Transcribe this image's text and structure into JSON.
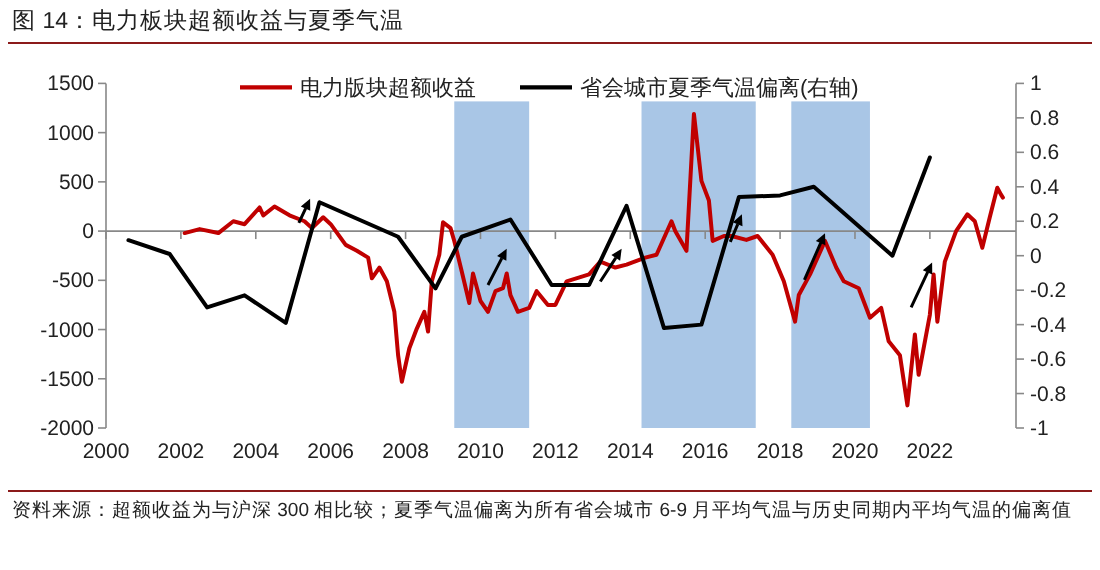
{
  "chart_data": {
    "type": "line",
    "title": "图 14：电力板块超额收益与夏季气温",
    "annotations": [
      "资料来源：超额收益为与沪深 300 相比较；夏季气温偏离为所有省会城市 6-9 月平均气温与历史同期内平均气温的偏离值"
    ],
    "series": [
      {
        "name": "电力版块超额收益",
        "color": "#c00000",
        "x": [
          2002.1,
          2002.5,
          2003.0,
          2003.4,
          2003.7,
          2004.1,
          2004.2,
          2004.5,
          2004.9,
          2005.3,
          2005.5,
          2005.8,
          2006.0,
          2006.4,
          2006.7,
          2007.0,
          2007.1,
          2007.3,
          2007.5,
          2007.7,
          2007.8,
          2007.9,
          2008.1,
          2008.3,
          2008.5,
          2008.6,
          2008.7,
          2008.9,
          2009.0,
          2009.2,
          2009.3,
          2009.5,
          2009.7,
          2009.8,
          2010.0,
          2010.2,
          2010.4,
          2010.6,
          2010.7,
          2010.8,
          2011.0,
          2011.3,
          2011.5,
          2011.8,
          2012.0,
          2012.3,
          2012.9,
          2013.2,
          2013.6,
          2013.9,
          2014.4,
          2014.7,
          2015.1,
          2015.2,
          2015.5,
          2015.7,
          2015.9,
          2016.1,
          2016.2,
          2016.5,
          2016.7,
          2017.1,
          2017.4,
          2017.8,
          2018.1,
          2018.4,
          2018.5,
          2018.8,
          2019.2,
          2019.5,
          2019.7,
          2020.1,
          2020.4,
          2020.7,
          2020.9,
          2021.2,
          2021.4,
          2021.6,
          2021.7,
          2022.0,
          2022.1,
          2022.2,
          2022.4,
          2022.7,
          2023.0,
          2023.2,
          2023.4,
          2023.6,
          2023.8,
          2023.9,
          2023.95
        ],
        "values": [
          -20,
          20,
          -20,
          100,
          70,
          240,
          160,
          250,
          160,
          100,
          30,
          140,
          70,
          -140,
          -200,
          -270,
          -480,
          -370,
          -510,
          -820,
          -1260,
          -1530,
          -1190,
          -990,
          -820,
          -1020,
          -510,
          -240,
          90,
          30,
          -100,
          -410,
          -730,
          -430,
          -710,
          -820,
          -610,
          -580,
          -430,
          -650,
          -820,
          -780,
          -610,
          -750,
          -750,
          -510,
          -440,
          -310,
          -370,
          -340,
          -270,
          -240,
          100,
          0,
          -200,
          1190,
          510,
          310,
          -100,
          -50,
          -50,
          -90,
          -50,
          -240,
          -510,
          -920,
          -650,
          -440,
          -100,
          -370,
          -510,
          -580,
          -880,
          -780,
          -1120,
          -1260,
          -1770,
          -1050,
          -1460,
          -850,
          -440,
          -920,
          -310,
          0,
          170,
          100,
          -170,
          140,
          440,
          370,
          340
        ]
      },
      {
        "name": "省会城市夏季气温偏离(右轴)",
        "color": "#000000",
        "axis": "y2",
        "x": [
          2000.6,
          2001.7,
          2002.7,
          2003.7,
          2004.8,
          2005.7,
          2007.8,
          2008.8,
          2009.5,
          2010.8,
          2011.9,
          2012.9,
          2013.9,
          2014.9,
          2015.9,
          2016.9,
          2018.0,
          2018.9,
          2021.0,
          2022.0
        ],
        "values": [
          0.09,
          0.01,
          -0.3,
          -0.23,
          -0.39,
          0.31,
          0.11,
          -0.19,
          0.11,
          0.21,
          -0.17,
          -0.17,
          0.29,
          -0.42,
          -0.4,
          0.34,
          0.35,
          0.4,
          0.0,
          0.57
        ]
      }
    ],
    "xlim": [
      2000,
      2024.3
    ],
    "xticks": [
      2000,
      2002,
      2004,
      2006,
      2008,
      2010,
      2012,
      2014,
      2016,
      2018,
      2020,
      2022
    ],
    "ylim": [
      -2000,
      1500
    ],
    "yticks": [
      -2000,
      -1500,
      -1000,
      -500,
      0,
      500,
      1000,
      1500
    ],
    "y2lim": [
      -1,
      1
    ],
    "y2ticks": [
      -1,
      -0.8,
      -0.6,
      -0.4,
      -0.2,
      0,
      0.2,
      0.4,
      0.6,
      0.8,
      1
    ],
    "bands": [
      {
        "axis": "x",
        "from": 2009.3,
        "to": 2011.3,
        "color": "#a9c6e6"
      },
      {
        "axis": "x",
        "from": 2014.3,
        "to": 2017.35,
        "color": "#a9c6e6"
      },
      {
        "axis": "x",
        "from": 2018.3,
        "to": 2020.4,
        "color": "#a9c6e6"
      }
    ],
    "legend": "top"
  }
}
